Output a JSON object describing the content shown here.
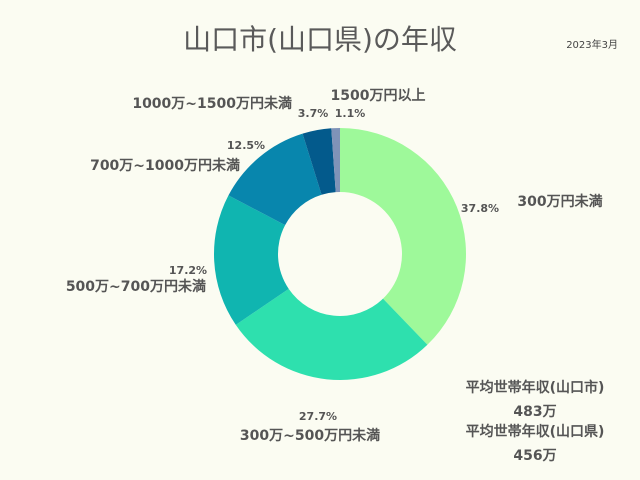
{
  "date_note": "2023年3月",
  "chart_data": {
    "type": "pie",
    "title": "山口市(山口県)の年収",
    "categories": [
      "300万円未満",
      "300万~500万円未満",
      "500万~700万円未満",
      "700万~1000万円未満",
      "1000万~1500万円未満",
      "1500万円以上"
    ],
    "values": [
      37.8,
      27.7,
      17.2,
      12.5,
      3.7,
      1.1
    ],
    "value_labels": [
      "37.8%",
      "27.7%",
      "17.2%",
      "12.5%",
      "3.7%",
      "1.1%"
    ],
    "colors": [
      "#9ef99a",
      "#2ee0ae",
      "#10b5b0",
      "#0886ad",
      "#035a8c",
      "#7f93b8"
    ]
  },
  "averages": [
    {
      "label": "平均世帯年収(山口市)",
      "value": "483万"
    },
    {
      "label": "平均世帯年収(山口県)",
      "value": "456万"
    }
  ]
}
